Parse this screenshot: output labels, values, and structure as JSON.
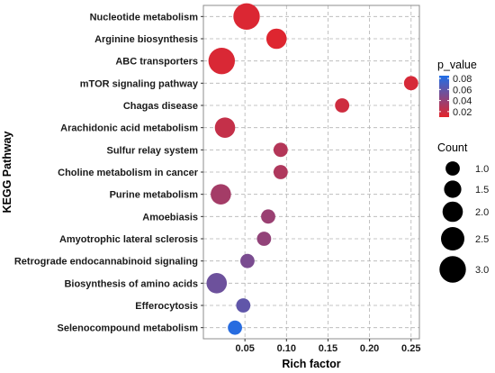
{
  "chart_data": {
    "type": "scatter",
    "xlabel": "Rich factor",
    "ylabel": "KEGG Pathway",
    "xlim": [
      0,
      0.26
    ],
    "x_ticks": [
      "0.05",
      "0.10",
      "0.15",
      "0.20",
      "0.25"
    ],
    "grid": true,
    "legend_placement": "right",
    "color_legend": {
      "title": "p_value",
      "ticks": [
        "0.08",
        "0.06",
        "0.04",
        "0.02"
      ],
      "range": [
        0.01,
        0.085
      ],
      "low_color": "#e3242b",
      "high_color": "#1f6fe8"
    },
    "size_legend": {
      "title": "Count",
      "entries": [
        {
          "count": 1,
          "label": "1.0"
        },
        {
          "count": 1.5,
          "label": "1.5"
        },
        {
          "count": 2,
          "label": "2.0"
        },
        {
          "count": 2.5,
          "label": "2.5"
        },
        {
          "count": 3,
          "label": "3.0"
        }
      ]
    },
    "points": [
      {
        "pathway": "Nucleotide metabolism",
        "rich_factor": 0.052,
        "count": 3,
        "p_value": 0.013
      },
      {
        "pathway": "Arginine biosynthesis",
        "rich_factor": 0.088,
        "count": 2,
        "p_value": 0.012
      },
      {
        "pathway": "ABC transporters",
        "rich_factor": 0.022,
        "count": 3,
        "p_value": 0.014
      },
      {
        "pathway": "mTOR signaling pathway",
        "rich_factor": 0.25,
        "count": 1,
        "p_value": 0.015
      },
      {
        "pathway": "Chagas disease",
        "rich_factor": 0.167,
        "count": 1,
        "p_value": 0.018
      },
      {
        "pathway": "Arachidonic acid metabolism",
        "rich_factor": 0.026,
        "count": 2,
        "p_value": 0.022
      },
      {
        "pathway": "Sulfur relay system",
        "rich_factor": 0.093,
        "count": 1,
        "p_value": 0.028
      },
      {
        "pathway": "Choline metabolism in cancer",
        "rich_factor": 0.093,
        "count": 1,
        "p_value": 0.03
      },
      {
        "pathway": "Purine metabolism",
        "rich_factor": 0.021,
        "count": 2,
        "p_value": 0.034
      },
      {
        "pathway": "Amoebiasis",
        "rich_factor": 0.078,
        "count": 1,
        "p_value": 0.038
      },
      {
        "pathway": "Amyotrophic lateral sclerosis",
        "rich_factor": 0.073,
        "count": 1,
        "p_value": 0.041
      },
      {
        "pathway": "Retrograde endocannabinoid signaling",
        "rich_factor": 0.053,
        "count": 1,
        "p_value": 0.05
      },
      {
        "pathway": "Biosynthesis of amino acids",
        "rich_factor": 0.016,
        "count": 2,
        "p_value": 0.055
      },
      {
        "pathway": "Efferocytosis",
        "rich_factor": 0.048,
        "count": 1,
        "p_value": 0.06
      },
      {
        "pathway": "Selenocompound metabolism",
        "rich_factor": 0.038,
        "count": 1,
        "p_value": 0.082
      }
    ]
  }
}
